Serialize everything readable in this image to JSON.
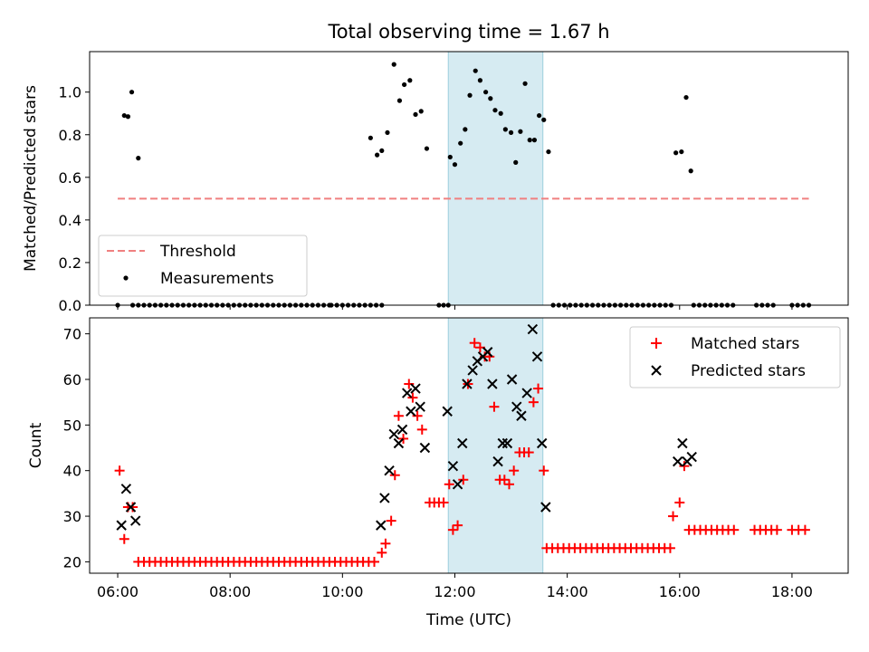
{
  "chart_data": [
    {
      "type": "scatter",
      "title": "Total observing time = 1.67 h",
      "ylabel": "Matched/Predicted stars",
      "xlim": [
        "05:30",
        "19:00"
      ],
      "ylim": [
        0,
        1.19
      ],
      "yticks": [
        "0.0",
        "0.2",
        "0.4",
        "0.6",
        "0.8",
        "1.0"
      ],
      "highlight_span": {
        "x": [
          "11:53",
          "13:34"
        ],
        "color": "#add8e6"
      },
      "legend": {
        "position": "lower-left",
        "entries": [
          "Threshold",
          "Measurements"
        ]
      },
      "threshold": {
        "name": "Threshold",
        "value": 0.5,
        "x_range": [
          "06:00",
          "18:18"
        ],
        "color": "#f08080",
        "style": "dashed"
      },
      "series": [
        {
          "name": "Measurements",
          "color": "#000000",
          "marker": "dot",
          "points": [
            {
              "x": "06:00",
              "y": 0
            },
            {
              "x": "06:07",
              "y": 0.89
            },
            {
              "x": "06:11",
              "y": 0.885
            },
            {
              "x": "06:15",
              "y": 1.0
            },
            {
              "x": "06:22",
              "y": 0.69
            },
            {
              "x": "10:30",
              "y": 0.785
            },
            {
              "x": "10:37",
              "y": 0.705
            },
            {
              "x": "10:42",
              "y": 0.725
            },
            {
              "x": "10:48",
              "y": 0.81
            },
            {
              "x": "10:55",
              "y": 1.13
            },
            {
              "x": "11:01",
              "y": 0.96
            },
            {
              "x": "11:06",
              "y": 1.035
            },
            {
              "x": "11:12",
              "y": 1.055
            },
            {
              "x": "11:18",
              "y": 0.895
            },
            {
              "x": "11:24",
              "y": 0.91
            },
            {
              "x": "11:30",
              "y": 0.735
            },
            {
              "x": "11:55",
              "y": 0.695
            },
            {
              "x": "12:00",
              "y": 0.66
            },
            {
              "x": "12:06",
              "y": 0.76
            },
            {
              "x": "12:11",
              "y": 0.825
            },
            {
              "x": "12:16",
              "y": 0.985
            },
            {
              "x": "12:22",
              "y": 1.1
            },
            {
              "x": "12:27",
              "y": 1.055
            },
            {
              "x": "12:33",
              "y": 1.0
            },
            {
              "x": "12:38",
              "y": 0.97
            },
            {
              "x": "12:43",
              "y": 0.915
            },
            {
              "x": "12:49",
              "y": 0.9
            },
            {
              "x": "12:54",
              "y": 0.825
            },
            {
              "x": "13:00",
              "y": 0.81
            },
            {
              "x": "13:05",
              "y": 0.67
            },
            {
              "x": "13:10",
              "y": 0.815
            },
            {
              "x": "13:15",
              "y": 1.04
            },
            {
              "x": "13:20",
              "y": 0.775
            },
            {
              "x": "13:25",
              "y": 0.775
            },
            {
              "x": "13:30",
              "y": 0.89
            },
            {
              "x": "13:35",
              "y": 0.87
            },
            {
              "x": "13:40",
              "y": 0.72
            },
            {
              "x": "15:56",
              "y": 0.715
            },
            {
              "x": "16:02",
              "y": 0.72
            },
            {
              "x": "16:07",
              "y": 0.975
            },
            {
              "x": "16:12",
              "y": 0.63
            }
          ],
          "zero_runs": [
            {
              "from": "06:16",
              "to": "09:48",
              "step_min": 6
            },
            {
              "from": "09:48",
              "to": "10:42",
              "step_min": 6
            },
            {
              "from": "11:43",
              "to": "11:53",
              "step_min": 5
            },
            {
              "from": "13:45",
              "to": "15:55",
              "step_min": 6
            },
            {
              "from": "16:15",
              "to": "17:00",
              "step_min": 6
            },
            {
              "from": "17:22",
              "to": "17:45",
              "step_min": 6
            },
            {
              "from": "18:00",
              "to": "18:18",
              "step_min": 6
            }
          ]
        }
      ]
    },
    {
      "type": "scatter",
      "xlabel": "Time (UTC)",
      "ylabel": "Count",
      "xlim": [
        "05:30",
        "19:00"
      ],
      "ylim": [
        17.5,
        73.5
      ],
      "xticks": [
        "06:00",
        "08:00",
        "10:00",
        "12:00",
        "14:00",
        "16:00",
        "18:00"
      ],
      "yticks": [
        "20",
        "30",
        "40",
        "50",
        "60",
        "70"
      ],
      "highlight_span": {
        "x": [
          "11:53",
          "13:34"
        ],
        "color": "#add8e6"
      },
      "legend": {
        "position": "top-right",
        "entries": [
          "Matched stars",
          "Predicted stars"
        ]
      },
      "series": [
        {
          "name": "Matched stars",
          "color": "#ff0000",
          "marker": "plus",
          "points": [
            {
              "x": "06:02",
              "y": 40
            },
            {
              "x": "06:07",
              "y": 25
            },
            {
              "x": "06:11",
              "y": 32
            },
            {
              "x": "06:16",
              "y": 32
            },
            {
              "x": "10:42",
              "y": 22
            },
            {
              "x": "10:46",
              "y": 24
            },
            {
              "x": "10:52",
              "y": 29
            },
            {
              "x": "10:56",
              "y": 39
            },
            {
              "x": "11:00",
              "y": 52
            },
            {
              "x": "11:05",
              "y": 47
            },
            {
              "x": "11:11",
              "y": 59
            },
            {
              "x": "11:15",
              "y": 56
            },
            {
              "x": "11:20",
              "y": 52
            },
            {
              "x": "11:25",
              "y": 49
            },
            {
              "x": "11:33",
              "y": 33
            },
            {
              "x": "11:38",
              "y": 33
            },
            {
              "x": "11:43",
              "y": 33
            },
            {
              "x": "11:48",
              "y": 33
            },
            {
              "x": "11:54",
              "y": 37
            },
            {
              "x": "11:58",
              "y": 27
            },
            {
              "x": "12:03",
              "y": 28
            },
            {
              "x": "12:09",
              "y": 38
            },
            {
              "x": "12:14",
              "y": 59
            },
            {
              "x": "12:21",
              "y": 68
            },
            {
              "x": "12:27",
              "y": 67
            },
            {
              "x": "12:32",
              "y": 65
            },
            {
              "x": "12:37",
              "y": 65
            },
            {
              "x": "12:42",
              "y": 54
            },
            {
              "x": "12:48",
              "y": 38
            },
            {
              "x": "12:53",
              "y": 38
            },
            {
              "x": "12:58",
              "y": 37
            },
            {
              "x": "13:03",
              "y": 40
            },
            {
              "x": "13:09",
              "y": 44
            },
            {
              "x": "13:14",
              "y": 44
            },
            {
              "x": "13:19",
              "y": 44
            },
            {
              "x": "13:24",
              "y": 55
            },
            {
              "x": "13:29",
              "y": 58
            },
            {
              "x": "13:35",
              "y": 40
            },
            {
              "x": "15:53",
              "y": 30
            },
            {
              "x": "16:00",
              "y": 33
            },
            {
              "x": "16:05",
              "y": 41
            }
          ],
          "constant_runs": [
            {
              "from": "06:22",
              "to": "10:38",
              "step_min": 6,
              "y": 20
            },
            {
              "from": "13:38",
              "to": "15:50",
              "step_min": 6,
              "y": 23
            },
            {
              "from": "16:10",
              "to": "17:00",
              "step_min": 6,
              "y": 27
            },
            {
              "from": "17:20",
              "to": "17:45",
              "step_min": 6,
              "y": 27
            },
            {
              "from": "18:00",
              "to": "18:20",
              "step_min": 7,
              "y": 27
            }
          ]
        },
        {
          "name": "Predicted stars",
          "color": "#000000",
          "marker": "x",
          "points": [
            {
              "x": "06:04",
              "y": 28
            },
            {
              "x": "06:09",
              "y": 36
            },
            {
              "x": "06:14",
              "y": 32
            },
            {
              "x": "06:19",
              "y": 29
            },
            {
              "x": "10:41",
              "y": 28
            },
            {
              "x": "10:45",
              "y": 34
            },
            {
              "x": "10:50",
              "y": 40
            },
            {
              "x": "10:55",
              "y": 48
            },
            {
              "x": "11:00",
              "y": 46
            },
            {
              "x": "11:04",
              "y": 49
            },
            {
              "x": "11:09",
              "y": 57
            },
            {
              "x": "11:13",
              "y": 53
            },
            {
              "x": "11:18",
              "y": 58
            },
            {
              "x": "11:23",
              "y": 54
            },
            {
              "x": "11:28",
              "y": 45
            },
            {
              "x": "11:52",
              "y": 53
            },
            {
              "x": "11:58",
              "y": 41
            },
            {
              "x": "12:03",
              "y": 37
            },
            {
              "x": "12:08",
              "y": 46
            },
            {
              "x": "12:13",
              "y": 59
            },
            {
              "x": "12:19",
              "y": 62
            },
            {
              "x": "12:24",
              "y": 64
            },
            {
              "x": "12:30",
              "y": 65
            },
            {
              "x": "12:35",
              "y": 66
            },
            {
              "x": "12:40",
              "y": 59
            },
            {
              "x": "12:46",
              "y": 42
            },
            {
              "x": "12:51",
              "y": 46
            },
            {
              "x": "12:56",
              "y": 46
            },
            {
              "x": "13:01",
              "y": 60
            },
            {
              "x": "13:06",
              "y": 54
            },
            {
              "x": "13:11",
              "y": 52
            },
            {
              "x": "13:17",
              "y": 57
            },
            {
              "x": "13:23",
              "y": 71
            },
            {
              "x": "13:28",
              "y": 65
            },
            {
              "x": "13:33",
              "y": 46
            },
            {
              "x": "13:37",
              "y": 32
            },
            {
              "x": "15:58",
              "y": 42
            },
            {
              "x": "16:03",
              "y": 46
            },
            {
              "x": "16:08",
              "y": 42
            },
            {
              "x": "16:13",
              "y": 43
            }
          ]
        }
      ]
    }
  ]
}
